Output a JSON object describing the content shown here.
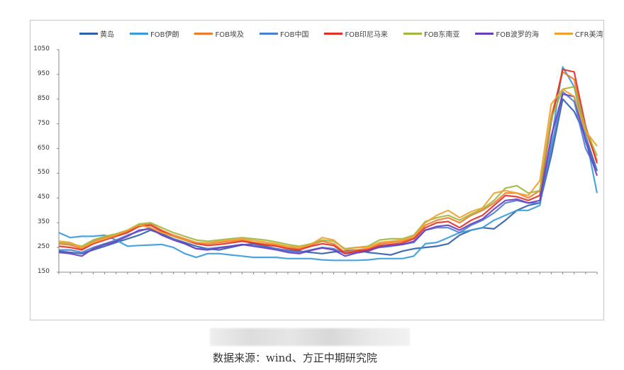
{
  "legend": [
    {
      "label": "黄岛",
      "color": "#2e5fa8"
    },
    {
      "label": "FOB伊朗",
      "color": "#3a9ad8"
    },
    {
      "label": "FOB埃及",
      "color": "#f07a2a"
    },
    {
      "label": "FOB中国",
      "color": "#4a7fd0"
    },
    {
      "label": "FOB印尼马来",
      "color": "#e0302a"
    },
    {
      "label": "FOB东南亚",
      "color": "#a0b83a"
    },
    {
      "label": "FOB波罗的海",
      "color": "#6a3cc0"
    },
    {
      "label": "CFR美湾",
      "color": "#f0a030"
    }
  ],
  "source_text": "数据来源：wind、方正中期研究院",
  "chart_data": {
    "type": "line",
    "title": "",
    "xlabel": "",
    "ylabel": "",
    "ylim": [
      150,
      1050
    ],
    "yticks": [
      150,
      250,
      350,
      450,
      550,
      650,
      750,
      850,
      950,
      1050
    ],
    "grid": false,
    "legend_position": "top",
    "x_count": 48,
    "categories": [],
    "series": [
      {
        "name": "黄岛",
        "color": "#2e5fa8",
        "values": [
          235,
          230,
          225,
          240,
          255,
          270,
          285,
          300,
          320,
          305,
          285,
          270,
          255,
          245,
          240,
          250,
          260,
          265,
          255,
          245,
          238,
          235,
          230,
          225,
          232,
          235,
          240,
          230,
          225,
          220,
          235,
          245,
          250,
          255,
          265,
          300,
          320,
          330,
          325,
          360,
          400,
          420,
          430,
          620,
          850,
          800,
          700,
          560
        ]
      },
      {
        "name": "FOB伊朗",
        "color": "#3a9ad8",
        "values": [
          310,
          290,
          295,
          295,
          300,
          280,
          255,
          258,
          260,
          262,
          250,
          225,
          210,
          225,
          225,
          220,
          215,
          210,
          210,
          210,
          205,
          205,
          205,
          200,
          198,
          198,
          198,
          200,
          205,
          205,
          205,
          215,
          265,
          270,
          290,
          310,
          320,
          330,
          360,
          380,
          400,
          400,
          420,
          680,
          980,
          900,
          700,
          470
        ]
      },
      {
        "name": "FOB埃及",
        "color": "#f07a2a",
        "values": [
          265,
          260,
          245,
          275,
          290,
          300,
          315,
          340,
          345,
          320,
          300,
          285,
          270,
          265,
          270,
          275,
          280,
          270,
          265,
          260,
          250,
          245,
          260,
          275,
          265,
          230,
          240,
          245,
          265,
          270,
          275,
          290,
          340,
          360,
          370,
          350,
          380,
          400,
          430,
          470,
          470,
          450,
          480,
          780,
          960,
          930,
          720,
          600
        ]
      },
      {
        "name": "FOB中国",
        "color": "#4a7fd0",
        "values": [
          240,
          240,
          230,
          250,
          265,
          280,
          300,
          315,
          330,
          300,
          285,
          265,
          245,
          245,
          250,
          255,
          262,
          258,
          250,
          245,
          235,
          230,
          240,
          250,
          245,
          225,
          230,
          240,
          250,
          255,
          262,
          270,
          320,
          330,
          330,
          310,
          340,
          360,
          390,
          430,
          440,
          430,
          430,
          650,
          880,
          840,
          650,
          560
        ]
      },
      {
        "name": "FOB印尼马来",
        "color": "#e0302a",
        "values": [
          255,
          250,
          240,
          265,
          280,
          295,
          310,
          335,
          340,
          315,
          295,
          280,
          265,
          258,
          262,
          268,
          275,
          268,
          260,
          255,
          245,
          240,
          255,
          265,
          258,
          225,
          235,
          240,
          258,
          262,
          268,
          285,
          330,
          350,
          355,
          330,
          360,
          380,
          420,
          460,
          455,
          440,
          460,
          760,
          970,
          960,
          740,
          590
        ]
      },
      {
        "name": "FOB东南亚",
        "color": "#a0b83a",
        "values": [
          270,
          265,
          255,
          280,
          295,
          305,
          320,
          345,
          350,
          330,
          310,
          295,
          280,
          275,
          280,
          285,
          290,
          285,
          280,
          272,
          262,
          255,
          265,
          280,
          275,
          245,
          250,
          255,
          280,
          285,
          285,
          300,
          355,
          370,
          380,
          360,
          385,
          405,
          440,
          490,
          500,
          470,
          480,
          770,
          890,
          900,
          730,
          620
        ]
      },
      {
        "name": "FOB波罗的海",
        "color": "#6a3cc0",
        "values": [
          230,
          225,
          215,
          245,
          262,
          275,
          295,
          320,
          325,
          300,
          280,
          265,
          245,
          240,
          248,
          255,
          262,
          255,
          248,
          240,
          230,
          225,
          238,
          248,
          240,
          215,
          228,
          235,
          252,
          258,
          262,
          275,
          320,
          335,
          340,
          320,
          345,
          365,
          405,
          440,
          445,
          430,
          440,
          700,
          870,
          860,
          680,
          540
        ]
      },
      {
        "name": "CFR美湾",
        "color": "#f0a030",
        "values": [
          275,
          270,
          250,
          270,
          285,
          300,
          320,
          340,
          330,
          310,
          295,
          280,
          270,
          268,
          275,
          280,
          285,
          278,
          272,
          265,
          255,
          250,
          262,
          290,
          280,
          240,
          250,
          250,
          270,
          275,
          280,
          295,
          350,
          380,
          400,
          370,
          395,
          410,
          470,
          480,
          470,
          460,
          520,
          830,
          890,
          860,
          720,
          660
        ]
      }
    ]
  }
}
